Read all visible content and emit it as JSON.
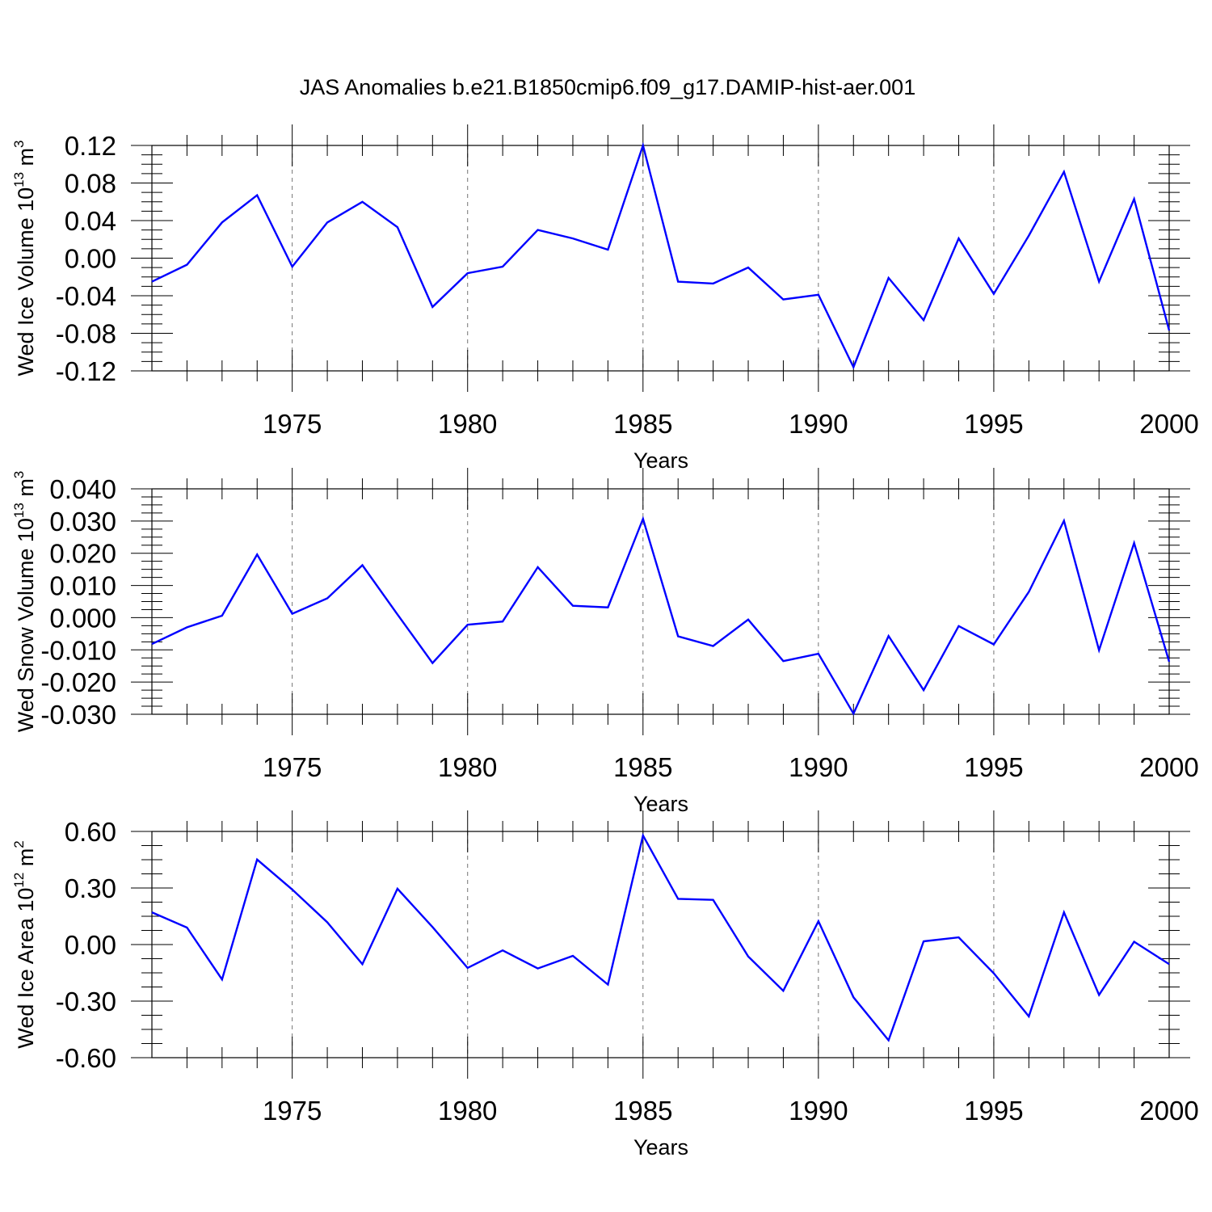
{
  "title": "JAS Anomalies b.e21.B1850cmip6.f09_g17.DAMIP-hist-aer.001",
  "colors": {
    "series": "#0000ff",
    "frame": "#000000",
    "grid": "#000000"
  },
  "chart_data": [
    {
      "type": "line",
      "ylabel": {
        "text": "Wed Ice Volume 10",
        "exponent": "13",
        "unit": " m",
        "unit_exponent": "3"
      },
      "xlabel": "Years",
      "xlim": [
        1971,
        2000
      ],
      "ylim": [
        -0.12,
        0.12
      ],
      "yticks": [
        -0.12,
        -0.08,
        -0.04,
        0.0,
        0.04,
        0.08,
        0.12
      ],
      "ytick_labels": [
        "-0.12",
        "-0.08",
        "-0.04",
        "0.00",
        "0.04",
        "0.08",
        "0.12"
      ],
      "xticks": [
        1975,
        1980,
        1985,
        1990,
        1995,
        2000
      ],
      "xtick_labels": [
        "1975",
        "1980",
        "1985",
        "1990",
        "1995",
        "2000"
      ],
      "grid": "dashed vertical lines at labeled years",
      "x": [
        1971,
        1972,
        1973,
        1974,
        1975,
        1976,
        1977,
        1978,
        1979,
        1980,
        1981,
        1982,
        1983,
        1984,
        1985,
        1986,
        1987,
        1988,
        1989,
        1990,
        1991,
        1992,
        1993,
        1994,
        1995,
        1996,
        1997,
        1998,
        1999,
        2000
      ],
      "y": [
        -0.025,
        -0.007,
        0.038,
        0.067,
        -0.009,
        0.038,
        0.06,
        0.033,
        -0.052,
        -0.016,
        -0.009,
        0.03,
        0.021,
        0.009,
        0.12,
        -0.025,
        -0.027,
        -0.01,
        -0.044,
        -0.039,
        -0.116,
        -0.021,
        -0.066,
        0.021,
        -0.038,
        0.024,
        0.092,
        -0.025,
        0.063,
        -0.077
      ]
    },
    {
      "type": "line",
      "ylabel": {
        "text": "Wed Snow Volume 10",
        "exponent": "13",
        "unit": " m",
        "unit_exponent": "3"
      },
      "xlabel": "Years",
      "xlim": [
        1971,
        2000
      ],
      "ylim": [
        -0.03,
        0.04
      ],
      "yticks": [
        -0.03,
        -0.02,
        -0.01,
        0.0,
        0.01,
        0.02,
        0.03,
        0.04
      ],
      "ytick_labels": [
        "-0.030",
        "-0.020",
        "-0.010",
        "0.000",
        "0.010",
        "0.020",
        "0.030",
        "0.040"
      ],
      "xticks": [
        1975,
        1980,
        1985,
        1990,
        1995,
        2000
      ],
      "xtick_labels": [
        "1975",
        "1980",
        "1985",
        "1990",
        "1995",
        "2000"
      ],
      "grid": "dashed vertical lines at labeled years",
      "x": [
        1971,
        1972,
        1973,
        1974,
        1975,
        1976,
        1977,
        1978,
        1979,
        1980,
        1981,
        1982,
        1983,
        1984,
        1985,
        1986,
        1987,
        1988,
        1989,
        1990,
        1991,
        1992,
        1993,
        1994,
        1995,
        1996,
        1997,
        1998,
        1999,
        2000
      ],
      "y": [
        -0.0082,
        -0.003,
        0.0006,
        0.0196,
        0.0012,
        0.006,
        0.0163,
        0.001,
        -0.0141,
        -0.0022,
        -0.0012,
        0.0157,
        0.0037,
        0.0032,
        0.0307,
        -0.0058,
        -0.0088,
        -0.0006,
        -0.0135,
        -0.0112,
        -0.0298,
        -0.0057,
        -0.0225,
        -0.0026,
        -0.0083,
        0.008,
        0.0301,
        -0.0101,
        0.0232,
        -0.0137
      ]
    },
    {
      "type": "line",
      "ylabel": {
        "text": "Wed Ice Area 10",
        "exponent": "12",
        "unit": " m",
        "unit_exponent": "2"
      },
      "xlabel": "Years",
      "xlim": [
        1971,
        2000
      ],
      "ylim": [
        -0.6,
        0.6
      ],
      "yticks": [
        -0.6,
        -0.3,
        0.0,
        0.3,
        0.6
      ],
      "ytick_labels": [
        "-0.60",
        "-0.30",
        "0.00",
        "0.30",
        "0.60"
      ],
      "xticks": [
        1975,
        1980,
        1985,
        1990,
        1995,
        2000
      ],
      "xtick_labels": [
        "1975",
        "1980",
        "1985",
        "1990",
        "1995",
        "2000"
      ],
      "grid": "dashed vertical lines at labeled years",
      "x": [
        1971,
        1972,
        1973,
        1974,
        1975,
        1976,
        1977,
        1978,
        1979,
        1980,
        1981,
        1982,
        1983,
        1984,
        1985,
        1986,
        1987,
        1988,
        1989,
        1990,
        1991,
        1992,
        1993,
        1994,
        1995,
        1996,
        1997,
        1998,
        1999,
        2000
      ],
      "y": [
        0.171,
        0.09,
        -0.185,
        0.451,
        0.292,
        0.118,
        -0.104,
        0.296,
        0.093,
        -0.124,
        -0.031,
        -0.127,
        -0.06,
        -0.212,
        0.578,
        0.242,
        0.237,
        -0.063,
        -0.245,
        0.124,
        -0.28,
        -0.508,
        0.017,
        0.038,
        -0.152,
        -0.381,
        0.171,
        -0.267,
        0.015,
        -0.104
      ]
    }
  ]
}
